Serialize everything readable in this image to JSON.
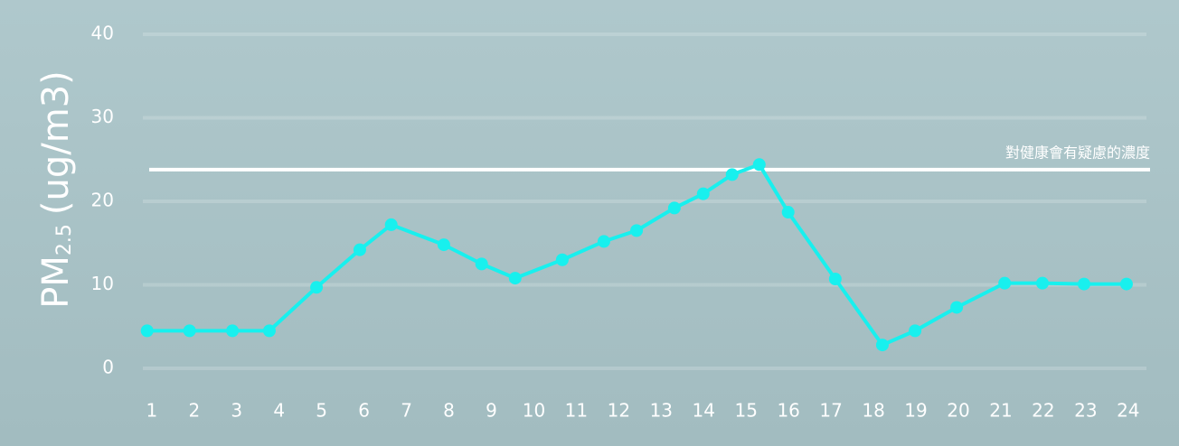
{
  "chart_data": {
    "type": "line",
    "y_label": {
      "main": "PM",
      "sub": "2.5",
      "unit": "(ug/m3)"
    },
    "xlim": [
      0.79,
      24.43
    ],
    "xticks": [
      1,
      2,
      3,
      4,
      5,
      6,
      7,
      8,
      9,
      10,
      11,
      12,
      13,
      14,
      15,
      16,
      17,
      18,
      19,
      20,
      21,
      22,
      23,
      24
    ],
    "ylim": [
      0,
      40
    ],
    "yticks": [
      0,
      10,
      20,
      30,
      40
    ],
    "grid": true,
    "series": [
      {
        "color": "#18f0ee",
        "x": [
          0.89,
          1.89,
          2.9,
          3.77,
          4.88,
          5.9,
          6.64,
          7.88,
          8.77,
          9.56,
          10.67,
          11.65,
          12.42,
          13.31,
          13.99,
          14.67,
          15.31,
          15.99,
          17.1,
          18.21,
          18.98,
          19.96,
          21.09,
          21.98,
          22.96,
          23.96
        ],
        "values": [
          4.5,
          4.5,
          4.5,
          4.5,
          9.7,
          14.2,
          17.2,
          14.8,
          12.5,
          10.8,
          13,
          15.2,
          16.5,
          19.2,
          20.9,
          23.2,
          24.4,
          18.7,
          10.7,
          2.8,
          4.5,
          7.3,
          10.2,
          10.2,
          10.1,
          10.1
        ]
      }
    ],
    "threshold": {
      "value": 23.8,
      "label": "對健康會有疑慮的濃度",
      "color": "#ffffff"
    }
  }
}
